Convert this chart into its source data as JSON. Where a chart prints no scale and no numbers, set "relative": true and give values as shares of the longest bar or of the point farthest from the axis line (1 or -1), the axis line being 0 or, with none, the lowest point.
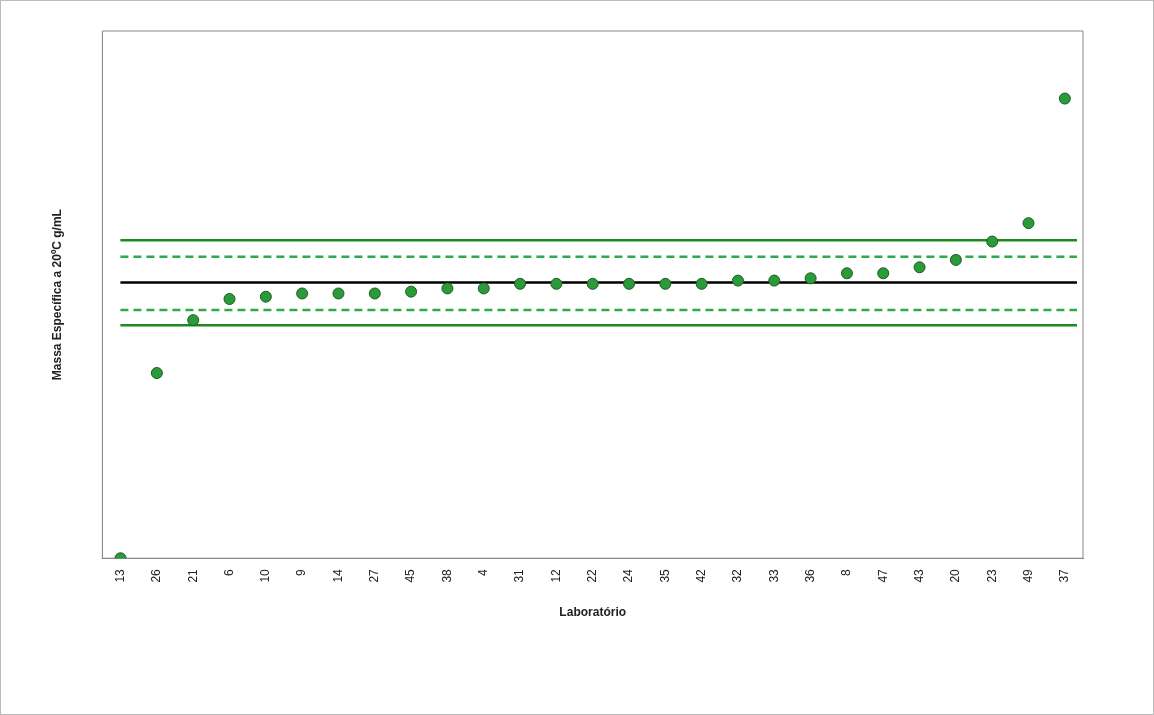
{
  "chart_data": {
    "type": "scatter",
    "relative": true,
    "xlabel": "Laboratório",
    "ylabel": "Massa Específica a 20ºC g/mL",
    "categories": [
      "13",
      "26",
      "21",
      "6",
      "10",
      "9",
      "14",
      "27",
      "45",
      "38",
      "4",
      "31",
      "12",
      "22",
      "24",
      "35",
      "42",
      "32",
      "33",
      "36",
      "8",
      "47",
      "43",
      "20",
      "23",
      "49",
      "37"
    ],
    "series": [
      {
        "color": "#2a9a3a",
        "values": [
          0,
          0.403,
          0.518,
          0.564,
          0.569,
          0.576,
          0.576,
          0.576,
          0.58,
          0.587,
          0.587,
          0.597,
          0.597,
          0.597,
          0.597,
          0.597,
          0.597,
          0.604,
          0.604,
          0.609,
          0.62,
          0.62,
          0.633,
          0.649,
          0.689,
          0.729,
          1
        ]
      }
    ],
    "ref_lines": [
      {
        "axis": "y",
        "value": 0.692,
        "color": "#1e8a1e",
        "line_style": "solid"
      },
      {
        "axis": "y",
        "value": 0.656,
        "color": "#2eaa4a",
        "line_style": "dashed"
      },
      {
        "axis": "y",
        "value": 0.6,
        "color": "#000000",
        "line_style": "solid"
      },
      {
        "axis": "y",
        "value": 0.54,
        "color": "#2eaa4a",
        "line_style": "dashed"
      },
      {
        "axis": "y",
        "value": 0.507,
        "color": "#1e8a1e",
        "line_style": "solid"
      }
    ],
    "marker": "circle",
    "grid": false,
    "legend": false
  }
}
